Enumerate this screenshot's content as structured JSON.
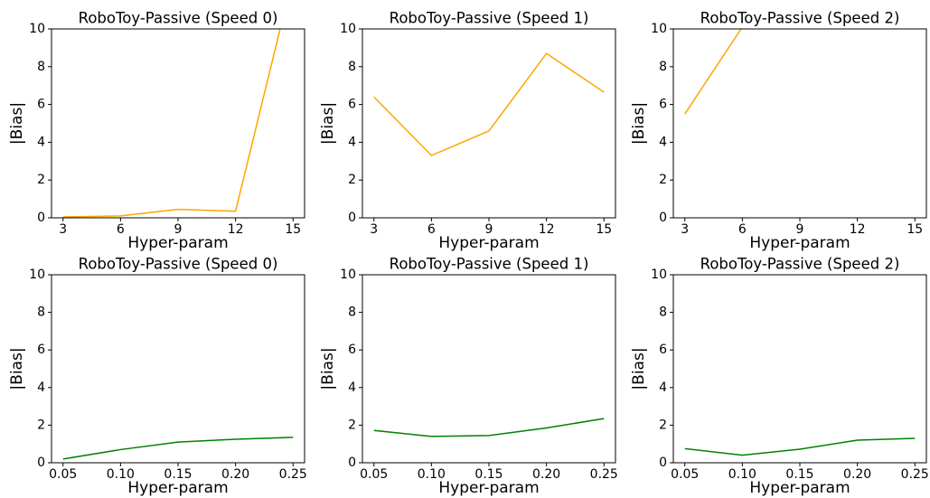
{
  "chart_data": [
    {
      "type": "line",
      "title": "RoboToy-Passive (Speed 0)",
      "x_label": "Hyper-param",
      "y_label": "|Bias|",
      "x": [
        3,
        6,
        9,
        12,
        15
      ],
      "values": [
        0.05,
        0.1,
        0.45,
        0.35,
        12.8
      ],
      "color": "#ffa500",
      "xlim": [
        2.4,
        15.6
      ],
      "xticks": [
        3,
        6,
        9,
        12,
        15
      ],
      "ylim": [
        0,
        10
      ],
      "yticks": [
        0,
        2,
        4,
        6,
        8,
        10
      ]
    },
    {
      "type": "line",
      "title": "RoboToy-Passive (Speed 1)",
      "x_label": "Hyper-param",
      "y_label": "|Bias|",
      "x": [
        3,
        6,
        9,
        12,
        15
      ],
      "values": [
        6.4,
        3.3,
        4.6,
        8.7,
        6.65
      ],
      "color": "#ffa500",
      "xlim": [
        2.4,
        15.6
      ],
      "xticks": [
        3,
        6,
        9,
        12,
        15
      ],
      "ylim": [
        0,
        10
      ],
      "yticks": [
        0,
        2,
        4,
        6,
        8,
        10
      ]
    },
    {
      "type": "line",
      "title": "RoboToy-Passive (Speed 2)",
      "x_label": "Hyper-param",
      "y_label": "|Bias|",
      "x": [
        3,
        6,
        9,
        12,
        15
      ],
      "values": [
        5.5,
        10.1,
        null,
        null,
        null
      ],
      "color": "#ffa500",
      "xlim": [
        2.4,
        15.6
      ],
      "xticks": [
        3,
        6,
        9,
        12,
        15
      ],
      "ylim": [
        0,
        10
      ],
      "yticks": [
        0,
        2,
        4,
        6,
        8,
        10
      ]
    },
    {
      "type": "line",
      "title": "RoboToy-Passive (Speed 0)",
      "x_label": "Hyper-param",
      "y_label": "|Bias|",
      "x": [
        0.05,
        0.1,
        0.15,
        0.2,
        0.25
      ],
      "values": [
        0.2,
        0.7,
        1.1,
        1.25,
        1.35
      ],
      "color": "#008000",
      "xlim": [
        0.04,
        0.26
      ],
      "xticks": [
        0.05,
        {
          "value": 0.1,
          "label": "0.10"
        },
        0.15,
        {
          "value": 0.2,
          "label": "0.20"
        },
        0.25
      ],
      "ylim": [
        0,
        10
      ],
      "yticks": [
        0,
        2,
        4,
        6,
        8,
        10
      ]
    },
    {
      "type": "line",
      "title": "RoboToy-Passive (Speed 1)",
      "x_label": "Hyper-param",
      "y_label": "|Bias|",
      "x": [
        0.05,
        0.1,
        0.15,
        0.2,
        0.25
      ],
      "values": [
        1.72,
        1.4,
        1.45,
        1.85,
        2.35
      ],
      "color": "#008000",
      "xlim": [
        0.04,
        0.26
      ],
      "xticks": [
        0.05,
        {
          "value": 0.1,
          "label": "0.10"
        },
        0.15,
        {
          "value": 0.2,
          "label": "0.20"
        },
        0.25
      ],
      "ylim": [
        0,
        10
      ],
      "yticks": [
        0,
        2,
        4,
        6,
        8,
        10
      ]
    },
    {
      "type": "line",
      "title": "RoboToy-Passive (Speed 2)",
      "x_label": "Hyper-param",
      "y_label": "|Bias|",
      "x": [
        0.05,
        0.1,
        0.15,
        0.2,
        0.25
      ],
      "values": [
        0.75,
        0.4,
        0.72,
        1.2,
        1.3
      ],
      "color": "#008000",
      "xlim": [
        0.04,
        0.26
      ],
      "xticks": [
        0.05,
        {
          "value": 0.1,
          "label": "0.10"
        },
        0.15,
        {
          "value": 0.2,
          "label": "0.20"
        },
        0.25
      ],
      "ylim": [
        0,
        10
      ],
      "yticks": [
        0,
        2,
        4,
        6,
        8,
        10
      ]
    }
  ]
}
